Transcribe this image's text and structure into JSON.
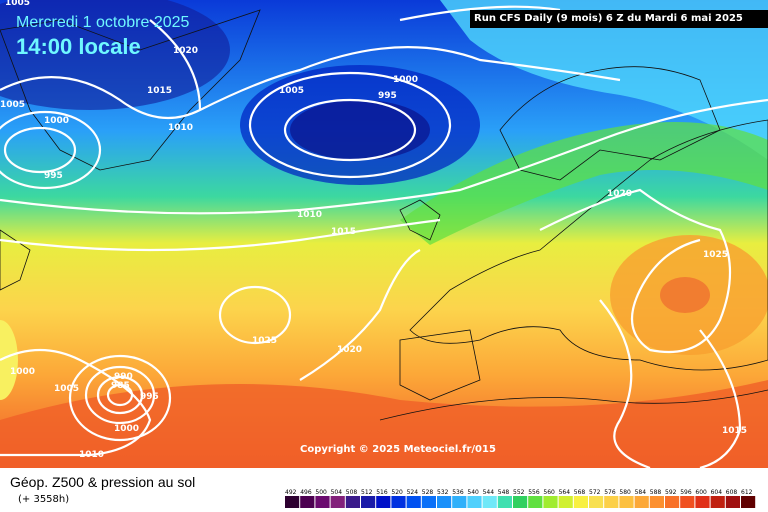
{
  "map": {
    "date_line": "Mercredi 1 octobre 2025",
    "time_line": "14:00 locale",
    "run_label": "Run CFS Daily (9 mois) 6 Z du Mardi 6 mai 2025",
    "copyright": "Copyright © 2025 Meteociel.fr/015",
    "isobar_labels": [
      "1005",
      "1020",
      "1015",
      "1005",
      "1000",
      "1010",
      "995",
      "1005",
      "1000",
      "995",
      "1010",
      "1015",
      "1020",
      "1025",
      "1020",
      "1025",
      "1000",
      "1005",
      "990",
      "985",
      "995",
      "1000",
      "1010",
      "1015"
    ]
  },
  "footer": {
    "title": "Géop. Z500 & pression au sol",
    "subtitle": "(+ 3558h)"
  },
  "scale": {
    "ticks": [
      "492",
      "496",
      "500",
      "504",
      "508",
      "512",
      "516",
      "520",
      "524",
      "528",
      "532",
      "536",
      "540",
      "544",
      "548",
      "552",
      "556",
      "560",
      "564",
      "568",
      "572",
      "576",
      "580",
      "584",
      "588",
      "592",
      "596",
      "600",
      "604",
      "608",
      "612"
    ],
    "colors": [
      "#2d0030",
      "#4c0050",
      "#6a0a6e",
      "#82207a",
      "#3a1a8a",
      "#1a1aa8",
      "#0010c8",
      "#0030e0",
      "#0050f0",
      "#0a70f8",
      "#1a90fa",
      "#30b0fa",
      "#50d0fc",
      "#70e8f8",
      "#40e0b0",
      "#30d060",
      "#60e040",
      "#a0ec30",
      "#d0f030",
      "#f8f040",
      "#f8e050",
      "#fcd048",
      "#fcc040",
      "#fca838",
      "#fc9030",
      "#f87028",
      "#f05020",
      "#e03018",
      "#c02010",
      "#a01010",
      "#600000"
    ]
  }
}
